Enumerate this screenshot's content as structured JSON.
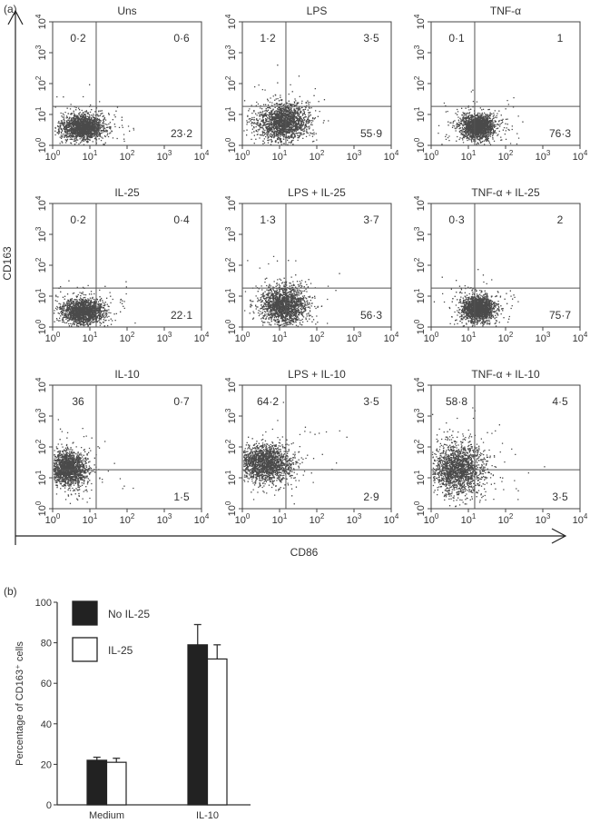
{
  "panel_a": {
    "label": "(a)",
    "y_axis_label": "CD163",
    "x_axis_label": "CD86",
    "chart_data": {
      "type": "scatter",
      "xscale": "log",
      "yscale": "log",
      "xlim": [
        1,
        10000
      ],
      "ylim": [
        1,
        10000
      ],
      "tick_labels": [
        "10",
        "10",
        "10",
        "10",
        "10"
      ],
      "tick_exponents": [
        "0",
        "1",
        "2",
        "3",
        "4"
      ],
      "point_color": "#4a4a4a",
      "plots": [
        {
          "title": "Uns",
          "upper_left": "0·2",
          "upper_right": "0·6",
          "lower_right": "23·2"
        },
        {
          "title": "LPS",
          "upper_left": "1·2",
          "upper_right": "3·5",
          "lower_right": "55·9"
        },
        {
          "title": "TNF-α",
          "upper_left": "0·1",
          "upper_right": "1",
          "lower_right": "76·3"
        },
        {
          "title": "IL-25",
          "upper_left": "0·2",
          "upper_right": "0·4",
          "lower_right": "22·1"
        },
        {
          "title": "LPS + IL-25",
          "upper_left": "1·3",
          "upper_right": "3·7",
          "lower_right": "56·3"
        },
        {
          "title": "TNF-α + IL-25",
          "upper_left": "0·3",
          "upper_right": "2",
          "lower_right": "75·7"
        },
        {
          "title": "IL-10",
          "upper_left": "36",
          "upper_right": "0·7",
          "lower_right": "1·5"
        },
        {
          "title": "LPS + IL-10",
          "upper_left": "64·2",
          "upper_right": "3·5",
          "lower_right": "2·9"
        },
        {
          "title": "TNF-α + IL-10",
          "upper_left": "58·8",
          "upper_right": "4·5",
          "lower_right": "3·5"
        }
      ]
    }
  },
  "panel_b": {
    "label": "(b)",
    "chart_data": {
      "type": "bar",
      "categories": [
        "Medium",
        "IL-10"
      ],
      "ylabel": "Percentage of CD163⁺ cells",
      "xlabel": "",
      "ylim": [
        0,
        100
      ],
      "yticks": [
        0,
        20,
        40,
        60,
        80,
        100
      ],
      "legend_placement": "top-left",
      "series": [
        {
          "name": "No IL-25",
          "color": "#222222",
          "values": [
            22,
            79
          ],
          "errors": [
            1.5,
            10
          ]
        },
        {
          "name": "IL-25",
          "color": "#ffffff",
          "values": [
            21,
            72
          ],
          "errors": [
            2,
            7
          ]
        }
      ]
    }
  }
}
